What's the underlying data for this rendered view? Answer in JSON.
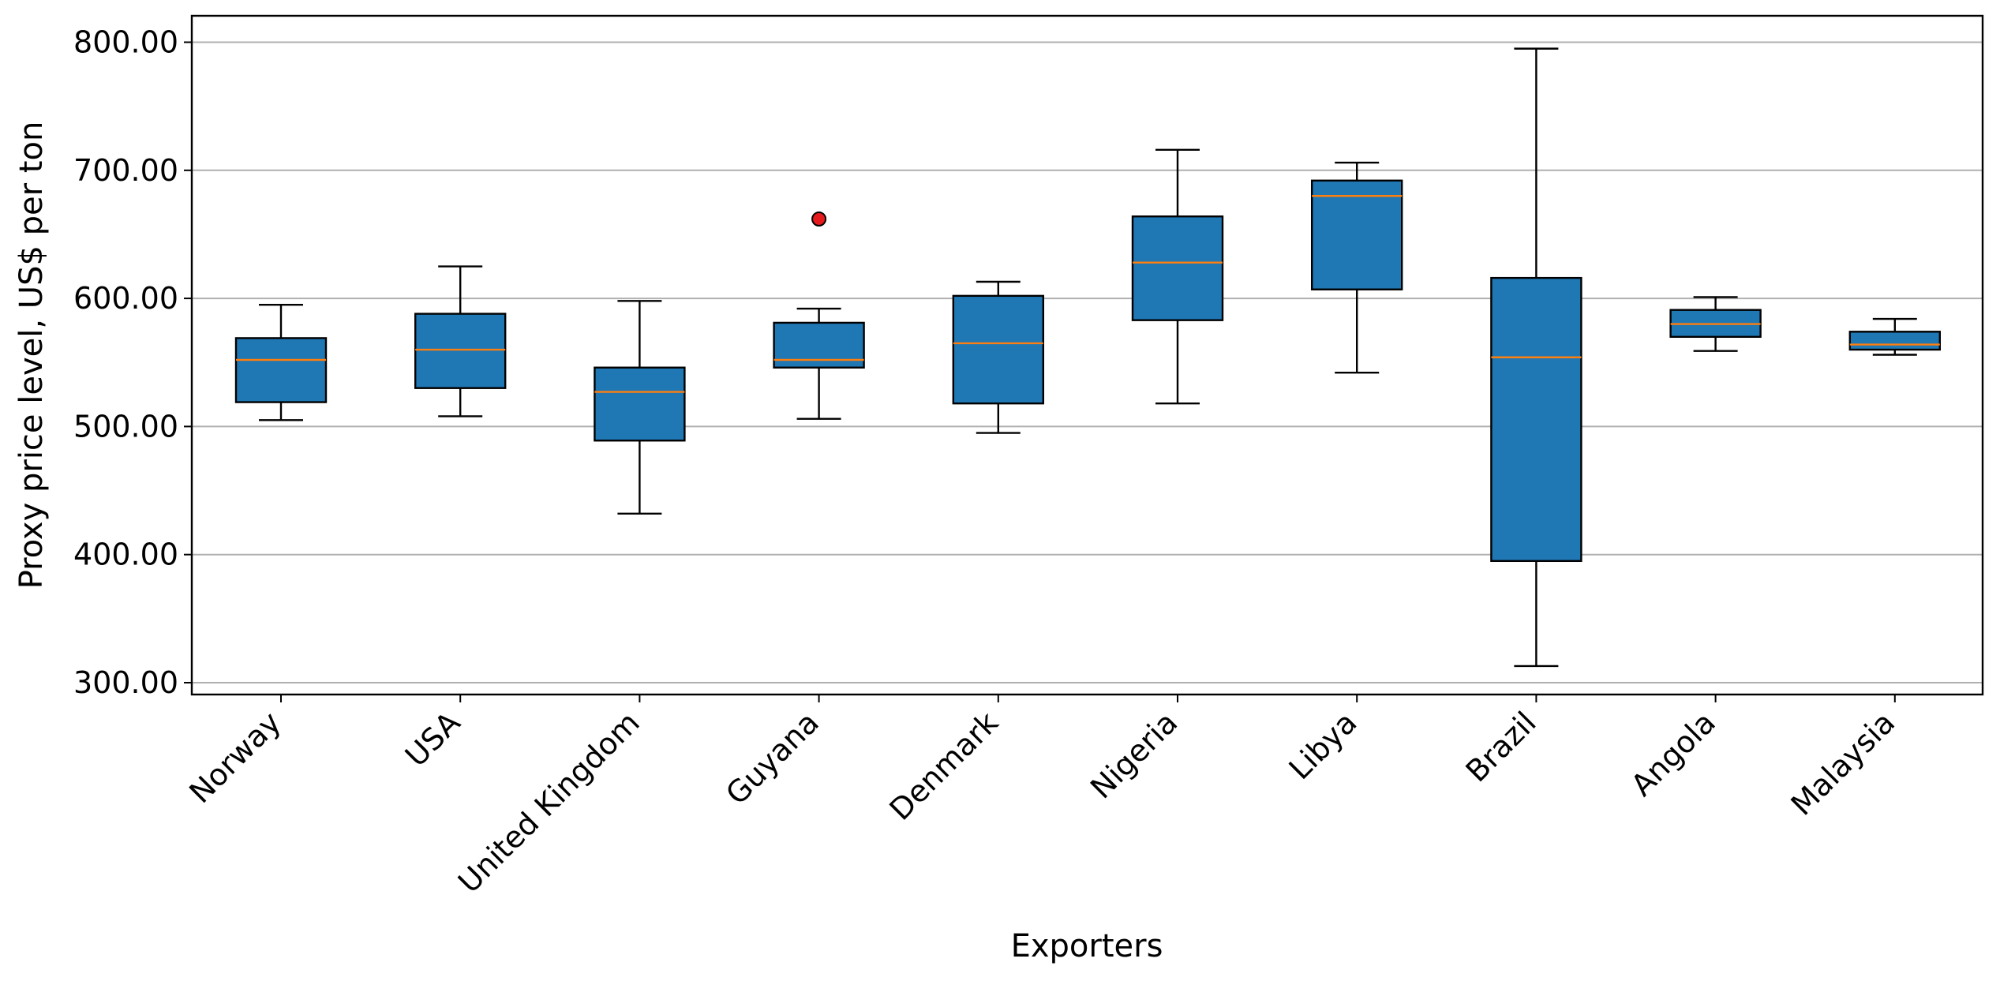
{
  "chart_data": {
    "type": "box",
    "xlabel": "Exporters",
    "ylabel": "Proxy price level, US$ per ton",
    "ylim": [
      290,
      820
    ],
    "yticks": [
      300,
      400,
      500,
      600,
      700,
      800
    ],
    "ytick_labels": [
      "300.00",
      "400.00",
      "500.00",
      "600.00",
      "700.00",
      "800.00"
    ],
    "grid": "horizontal",
    "colors": {
      "box_fill": "#1f77b4",
      "median": "#ff7f0e",
      "outlier": "#e41a1c",
      "grid": "#b0b0b0"
    },
    "categories": [
      "Norway",
      "USA",
      "United Kingdom",
      "Guyana",
      "Denmark",
      "Nigeria",
      "Libya",
      "Brazil",
      "Angola",
      "Malaysia"
    ],
    "boxes": [
      {
        "whisker_low": 505,
        "q1": 519,
        "median": 552,
        "q3": 569,
        "whisker_high": 595,
        "outliers": []
      },
      {
        "whisker_low": 508,
        "q1": 530,
        "median": 560,
        "q3": 588,
        "whisker_high": 625,
        "outliers": []
      },
      {
        "whisker_low": 432,
        "q1": 489,
        "median": 527,
        "q3": 546,
        "whisker_high": 598,
        "outliers": []
      },
      {
        "whisker_low": 506,
        "q1": 546,
        "median": 552,
        "q3": 581,
        "whisker_high": 592,
        "outliers": [
          662
        ]
      },
      {
        "whisker_low": 495,
        "q1": 518,
        "median": 565,
        "q3": 602,
        "whisker_high": 613,
        "outliers": []
      },
      {
        "whisker_low": 518,
        "q1": 583,
        "median": 628,
        "q3": 664,
        "whisker_high": 716,
        "outliers": []
      },
      {
        "whisker_low": 542,
        "q1": 607,
        "median": 680,
        "q3": 692,
        "whisker_high": 706,
        "outliers": []
      },
      {
        "whisker_low": 313,
        "q1": 395,
        "median": 554,
        "q3": 616,
        "whisker_high": 795,
        "outliers": []
      },
      {
        "whisker_low": 559,
        "q1": 570,
        "median": 580,
        "q3": 591,
        "whisker_high": 601,
        "outliers": []
      },
      {
        "whisker_low": 556,
        "q1": 560,
        "median": 564,
        "q3": 574,
        "whisker_high": 584,
        "outliers": []
      }
    ]
  }
}
